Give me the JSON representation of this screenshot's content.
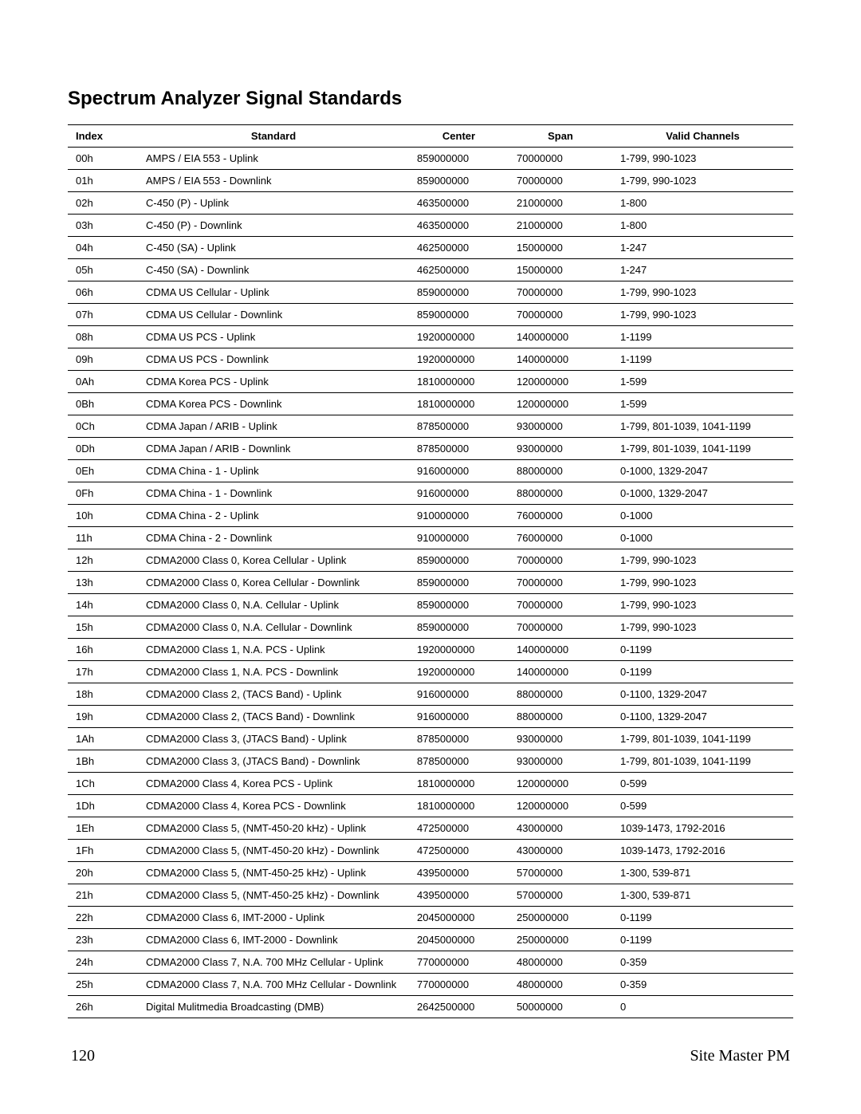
{
  "title": "Spectrum Analyzer Signal Standards",
  "headers": {
    "index": "Index",
    "standard": "Standard",
    "center": "Center",
    "span": "Span",
    "valid": "Valid Channels"
  },
  "rows": [
    {
      "index": "00h",
      "standard": "AMPS / EIA 553 - Uplink",
      "center": "859000000",
      "span": "70000000",
      "valid": "1-799, 990-1023"
    },
    {
      "index": "01h",
      "standard": "AMPS / EIA 553 - Downlink",
      "center": "859000000",
      "span": "70000000",
      "valid": "1-799, 990-1023"
    },
    {
      "index": "02h",
      "standard": "C-450 (P) - Uplink",
      "center": "463500000",
      "span": "21000000",
      "valid": "1-800"
    },
    {
      "index": "03h",
      "standard": "C-450 (P) - Downlink",
      "center": "463500000",
      "span": "21000000",
      "valid": "1-800"
    },
    {
      "index": "04h",
      "standard": "C-450 (SA) - Uplink",
      "center": "462500000",
      "span": "15000000",
      "valid": "1-247"
    },
    {
      "index": "05h",
      "standard": "C-450 (SA) - Downlink",
      "center": "462500000",
      "span": "15000000",
      "valid": "1-247"
    },
    {
      "index": "06h",
      "standard": "CDMA US Cellular - Uplink",
      "center": "859000000",
      "span": "70000000",
      "valid": "1-799, 990-1023"
    },
    {
      "index": "07h",
      "standard": "CDMA US Cellular - Downlink",
      "center": "859000000",
      "span": "70000000",
      "valid": "1-799, 990-1023"
    },
    {
      "index": "08h",
      "standard": "CDMA US PCS - Uplink",
      "center": "1920000000",
      "span": "140000000",
      "valid": "1-1199"
    },
    {
      "index": "09h",
      "standard": "CDMA US PCS - Downlink",
      "center": "1920000000",
      "span": "140000000",
      "valid": "1-1199"
    },
    {
      "index": "0Ah",
      "standard": "CDMA Korea PCS - Uplink",
      "center": "1810000000",
      "span": "120000000",
      "valid": "1-599"
    },
    {
      "index": "0Bh",
      "standard": "CDMA Korea PCS - Downlink",
      "center": "1810000000",
      "span": "120000000",
      "valid": "1-599"
    },
    {
      "index": "0Ch",
      "standard": "CDMA Japan / ARIB - Uplink",
      "center": "878500000",
      "span": "93000000",
      "valid": "1-799, 801-1039, 1041-1199"
    },
    {
      "index": "0Dh",
      "standard": "CDMA Japan / ARIB - Downlink",
      "center": "878500000",
      "span": "93000000",
      "valid": "1-799, 801-1039, 1041-1199"
    },
    {
      "index": "0Eh",
      "standard": "CDMA China - 1 - Uplink",
      "center": "916000000",
      "span": "88000000",
      "valid": "0-1000, 1329-2047"
    },
    {
      "index": "0Fh",
      "standard": "CDMA China - 1 - Downlink",
      "center": "916000000",
      "span": "88000000",
      "valid": "0-1000, 1329-2047"
    },
    {
      "index": "10h",
      "standard": "CDMA China - 2 - Uplink",
      "center": "910000000",
      "span": "76000000",
      "valid": "0-1000"
    },
    {
      "index": "11h",
      "standard": "CDMA China - 2 - Downlink",
      "center": "910000000",
      "span": "76000000",
      "valid": "0-1000"
    },
    {
      "index": "12h",
      "standard": "CDMA2000 Class 0, Korea Cellular - Uplink",
      "center": "859000000",
      "span": "70000000",
      "valid": "1-799, 990-1023"
    },
    {
      "index": "13h",
      "standard": "CDMA2000 Class 0, Korea Cellular - Downlink",
      "center": "859000000",
      "span": "70000000",
      "valid": "1-799, 990-1023"
    },
    {
      "index": "14h",
      "standard": "CDMA2000 Class 0, N.A. Cellular - Uplink",
      "center": "859000000",
      "span": "70000000",
      "valid": "1-799, 990-1023"
    },
    {
      "index": "15h",
      "standard": "CDMA2000 Class 0, N.A. Cellular - Downlink",
      "center": "859000000",
      "span": "70000000",
      "valid": "1-799, 990-1023"
    },
    {
      "index": "16h",
      "standard": "CDMA2000 Class 1, N.A. PCS - Uplink",
      "center": "1920000000",
      "span": "140000000",
      "valid": "0-1199"
    },
    {
      "index": "17h",
      "standard": "CDMA2000 Class 1, N.A. PCS - Downlink",
      "center": "1920000000",
      "span": "140000000",
      "valid": "0-1199"
    },
    {
      "index": "18h",
      "standard": "CDMA2000 Class 2, (TACS Band) - Uplink",
      "center": "916000000",
      "span": "88000000",
      "valid": "0-1100, 1329-2047"
    },
    {
      "index": "19h",
      "standard": "CDMA2000 Class 2, (TACS Band) - Downlink",
      "center": "916000000",
      "span": "88000000",
      "valid": "0-1100, 1329-2047"
    },
    {
      "index": "1Ah",
      "standard": "CDMA2000 Class 3, (JTACS Band) - Uplink",
      "center": "878500000",
      "span": "93000000",
      "valid": "1-799, 801-1039, 1041-1199"
    },
    {
      "index": "1Bh",
      "standard": "CDMA2000 Class 3, (JTACS Band) - Downlink",
      "center": "878500000",
      "span": "93000000",
      "valid": "1-799, 801-1039, 1041-1199"
    },
    {
      "index": "1Ch",
      "standard": "CDMA2000 Class 4, Korea PCS - Uplink",
      "center": "1810000000",
      "span": "120000000",
      "valid": "0-599"
    },
    {
      "index": "1Dh",
      "standard": "CDMA2000 Class 4, Korea PCS - Downlink",
      "center": "1810000000",
      "span": "120000000",
      "valid": "0-599"
    },
    {
      "index": "1Eh",
      "standard": "CDMA2000 Class 5, (NMT-450-20 kHz) - Uplink",
      "center": "472500000",
      "span": "43000000",
      "valid": "1039-1473, 1792-2016"
    },
    {
      "index": "1Fh",
      "standard": "CDMA2000 Class 5, (NMT-450-20 kHz) - Downlink",
      "center": "472500000",
      "span": "43000000",
      "valid": "1039-1473, 1792-2016"
    },
    {
      "index": "20h",
      "standard": "CDMA2000 Class 5, (NMT-450-25 kHz) - Uplink",
      "center": "439500000",
      "span": "57000000",
      "valid": "1-300, 539-871"
    },
    {
      "index": "21h",
      "standard": "CDMA2000 Class 5, (NMT-450-25 kHz) - Downlink",
      "center": "439500000",
      "span": "57000000",
      "valid": "1-300, 539-871"
    },
    {
      "index": "22h",
      "standard": "CDMA2000 Class 6, IMT-2000 - Uplink",
      "center": "2045000000",
      "span": "250000000",
      "valid": "0-1199"
    },
    {
      "index": "23h",
      "standard": "CDMA2000 Class 6, IMT-2000 - Downlink",
      "center": "2045000000",
      "span": "250000000",
      "valid": "0-1199"
    },
    {
      "index": "24h",
      "standard": "CDMA2000 Class 7, N.A. 700 MHz Cellular - Uplink",
      "center": "770000000",
      "span": "48000000",
      "valid": "0-359"
    },
    {
      "index": "25h",
      "standard": "CDMA2000 Class 7, N.A. 700 MHz Cellular - Downlink",
      "center": "770000000",
      "span": "48000000",
      "valid": "0-359"
    },
    {
      "index": "26h",
      "standard": "Digital Mulitmedia Broadcasting (DMB)",
      "center": "2642500000",
      "span": "50000000",
      "valid": "0"
    }
  ],
  "footer": {
    "page": "120",
    "doc": "Site Master PM"
  }
}
